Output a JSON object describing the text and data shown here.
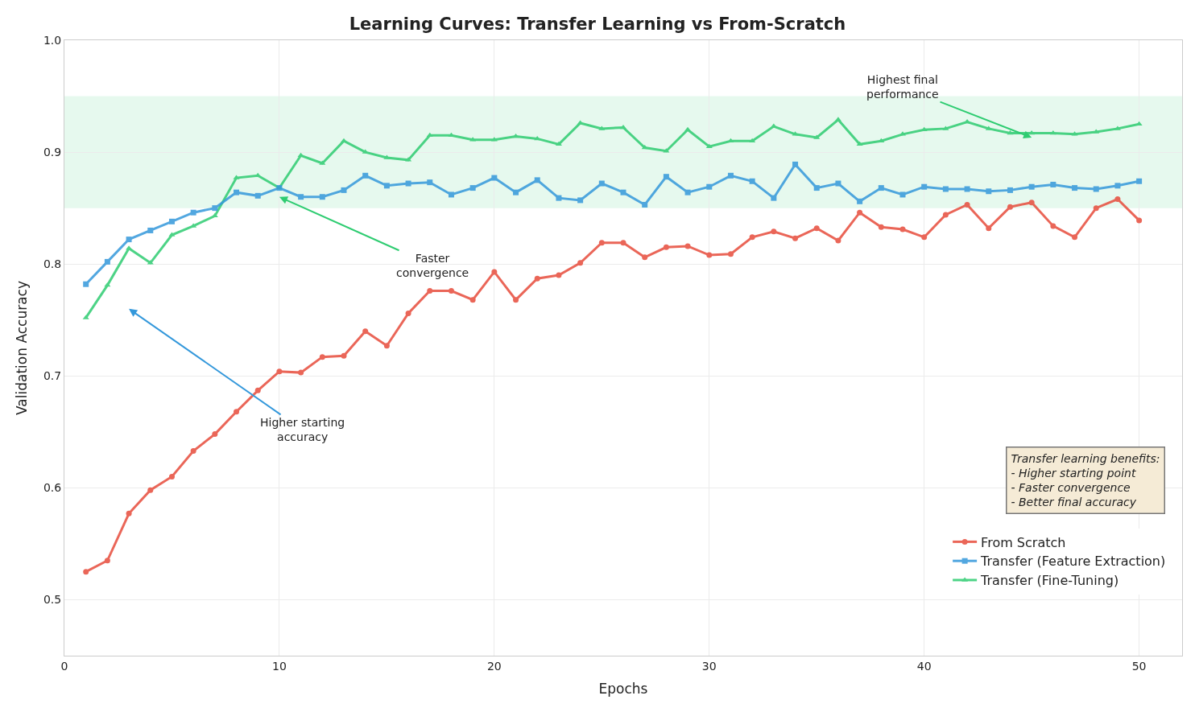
{
  "chart_data": {
    "type": "line",
    "title": "Learning Curves: Transfer Learning vs From-Scratch",
    "xlabel": "Epochs",
    "ylabel": "Validation Accuracy",
    "x": [
      1,
      2,
      3,
      4,
      5,
      6,
      7,
      8,
      9,
      10,
      11,
      12,
      13,
      14,
      15,
      16,
      17,
      18,
      19,
      20,
      21,
      22,
      23,
      24,
      25,
      26,
      27,
      28,
      29,
      30,
      31,
      32,
      33,
      34,
      35,
      36,
      37,
      38,
      39,
      40,
      41,
      42,
      43,
      44,
      45,
      46,
      47,
      48,
      49,
      50
    ],
    "series": [
      {
        "name": "From Scratch",
        "color": "#e74c3c",
        "marker": "circle",
        "values": [
          0.525,
          0.535,
          0.577,
          0.598,
          0.61,
          0.633,
          0.648,
          0.668,
          0.687,
          0.704,
          0.703,
          0.717,
          0.718,
          0.74,
          0.727,
          0.756,
          0.776,
          0.776,
          0.768,
          0.793,
          0.768,
          0.787,
          0.79,
          0.801,
          0.819,
          0.819,
          0.806,
          0.815,
          0.816,
          0.808,
          0.809,
          0.824,
          0.829,
          0.823,
          0.832,
          0.821,
          0.846,
          0.833,
          0.831,
          0.824,
          0.844,
          0.853,
          0.832,
          0.851,
          0.855,
          0.834,
          0.824,
          0.85,
          0.858,
          0.839
        ]
      },
      {
        "name": "Transfer (Feature Extraction)",
        "color": "#3498db",
        "marker": "square",
        "values": [
          0.782,
          0.802,
          0.822,
          0.83,
          0.838,
          0.846,
          0.85,
          0.864,
          0.861,
          0.868,
          0.86,
          0.86,
          0.866,
          0.879,
          0.87,
          0.872,
          0.873,
          0.862,
          0.868,
          0.877,
          0.864,
          0.875,
          0.859,
          0.857,
          0.872,
          0.864,
          0.853,
          0.878,
          0.864,
          0.869,
          0.879,
          0.874,
          0.859,
          0.889,
          0.868,
          0.872,
          0.856,
          0.868,
          0.862,
          0.869,
          0.867,
          0.867,
          0.865,
          0.866,
          0.869,
          0.871,
          0.868,
          0.867,
          0.87,
          0.874
        ]
      },
      {
        "name": "Transfer (Fine-Tuning)",
        "color": "#2ecc71",
        "marker": "triangle",
        "values": [
          0.752,
          0.781,
          0.814,
          0.801,
          0.826,
          0.834,
          0.843,
          0.877,
          0.879,
          0.868,
          0.897,
          0.89,
          0.91,
          0.9,
          0.895,
          0.893,
          0.915,
          0.915,
          0.911,
          0.911,
          0.914,
          0.912,
          0.907,
          0.926,
          0.921,
          0.922,
          0.904,
          0.901,
          0.92,
          0.905,
          0.91,
          0.91,
          0.923,
          0.916,
          0.913,
          0.929,
          0.907,
          0.91,
          0.916,
          0.92,
          0.921,
          0.927,
          0.921,
          0.917,
          0.917,
          0.917,
          0.916,
          0.918,
          0.921,
          0.925
        ]
      }
    ],
    "bands": [
      {
        "axis": "y",
        "from": 0.85,
        "to": 0.95,
        "color": "#2ecc71"
      }
    ],
    "annotations": [
      "Higher starting\naccuracy",
      "Faster\nconvergence",
      {
        "text": "Highest final\nperformance",
        "x": 45,
        "y": 0.913
      },
      "Transfer learning benefits:\n- Higher starting point\n- Faster convergence\n- Better final accuracy"
    ],
    "xlim": [
      0,
      52
    ],
    "ylim": [
      0.45,
      1.0
    ],
    "xticks": [
      0,
      10,
      20,
      30,
      40,
      50
    ],
    "yticks": [
      {
        "value": 0.5,
        "label": "0.5"
      },
      {
        "value": 0.6,
        "label": "0.6"
      },
      {
        "value": 0.7,
        "label": "0.7"
      },
      {
        "value": 0.8,
        "label": "0.8"
      },
      {
        "value": 0.9,
        "label": "0.9"
      },
      {
        "value": 1.0,
        "label": "1.0"
      }
    ],
    "grid": true,
    "legend": "bottom right",
    "line_style": "solid"
  }
}
